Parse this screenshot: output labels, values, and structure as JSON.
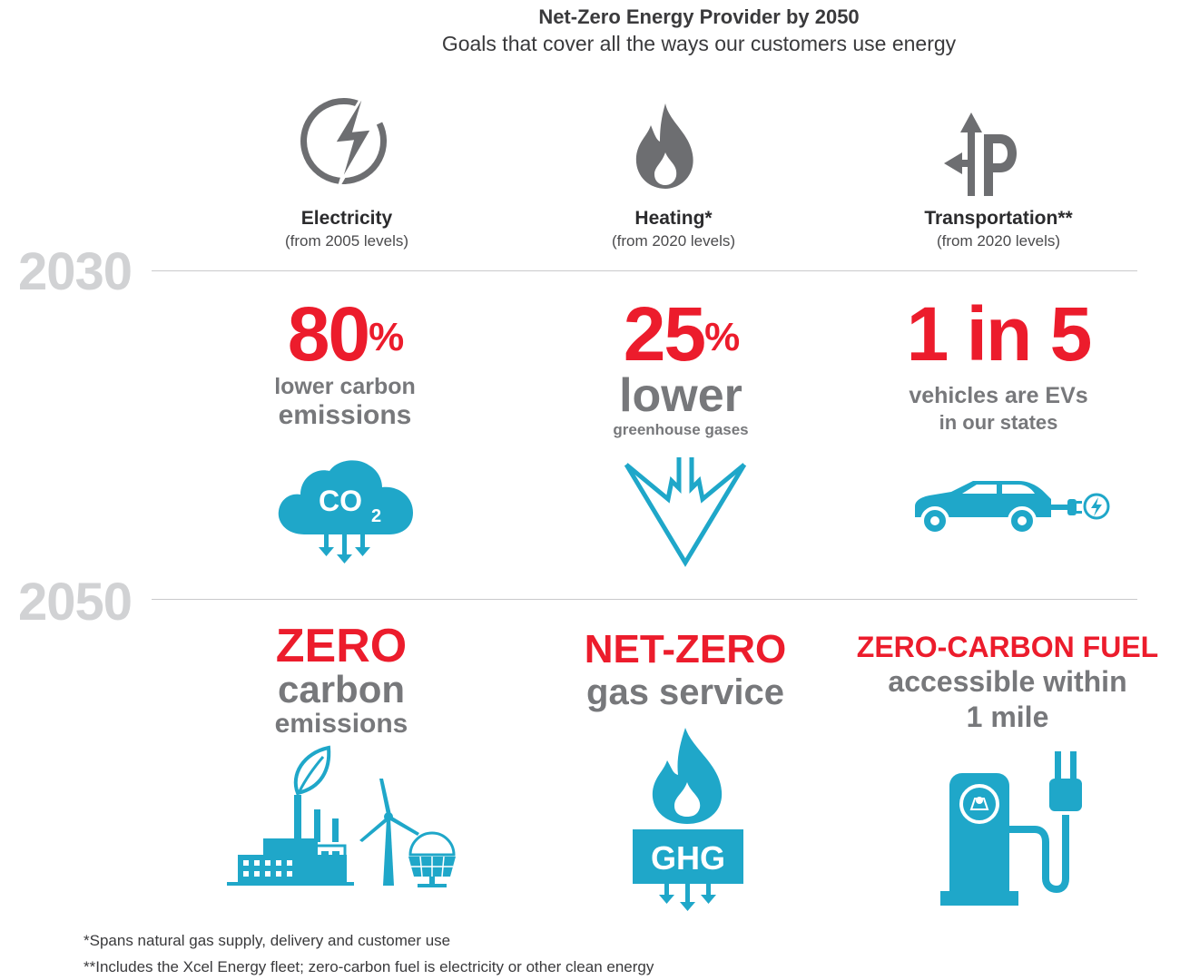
{
  "header": {
    "title": "Net-Zero Energy Provider by 2050",
    "subtitle": "Goals that cover all the ways our customers use energy"
  },
  "columns": [
    {
      "name": "Electricity",
      "baseline": "(from 2005 levels)",
      "icon": "lightning-bolt-icon"
    },
    {
      "name": "Heating*",
      "baseline": "(from 2020 levels)",
      "icon": "flame-icon"
    },
    {
      "name": "Transportation**",
      "baseline": "(from 2020 levels)",
      "icon": "direction-arrows-icon"
    }
  ],
  "years": {
    "first": "2030",
    "second": "2050"
  },
  "goals_2030": {
    "electricity": {
      "value": "80",
      "unit": "%",
      "line1": "lower carbon",
      "line2": "emissions",
      "icon": "co2-cloud-icon",
      "icon_label": "CO",
      "icon_sub": "2"
    },
    "heating": {
      "value": "25",
      "unit": "%",
      "line1": "lower",
      "line2": "greenhouse gases",
      "icon": "down-arrow-icon"
    },
    "transportation": {
      "value": "1 in 5",
      "line1": "vehicles are EVs",
      "line2": "in our states",
      "icon": "electric-car-icon"
    }
  },
  "goals_2050": {
    "electricity": {
      "headline": "ZERO",
      "line1": "carbon",
      "line2": "emissions",
      "icon": "factory-wind-solar-icon"
    },
    "heating": {
      "headline": "NET-ZERO",
      "line1": "gas service",
      "icon": "ghg-flame-icon",
      "icon_label": "GHG"
    },
    "transportation": {
      "headline": "ZERO-CARBON FUEL",
      "line1": "accessible within",
      "line2": "1 mile",
      "icon": "charging-station-icon"
    }
  },
  "footnotes": [
    "*Spans natural gas supply, delivery and customer use",
    "**Includes the Xcel Energy fleet; zero-carbon fuel is electricity or other clean energy"
  ],
  "colors": {
    "red": "#ec1c2c",
    "gray": "#77787b",
    "icon_gray": "#6d6e71",
    "blue": "#1fa7c9",
    "year_gray": "#d1d2d4"
  }
}
